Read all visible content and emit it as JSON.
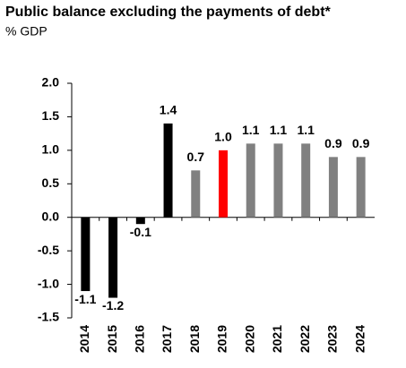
{
  "chart_data": {
    "type": "bar",
    "title": "Public balance excluding the payments of debt*",
    "subtitle": "% GDP",
    "categories": [
      "2014",
      "2015",
      "2016",
      "2017",
      "2018",
      "2019",
      "2020",
      "2021",
      "2022",
      "2023",
      "2024"
    ],
    "values": [
      -1.1,
      -1.2,
      -0.1,
      1.4,
      0.7,
      1.0,
      1.1,
      1.1,
      1.1,
      0.9,
      0.9
    ],
    "value_labels": [
      "-1.1",
      "-1.2",
      "-0.1",
      "1.4",
      "0.7",
      "1.0",
      "1.1",
      "1.1",
      "1.1",
      "0.9",
      "0.9"
    ],
    "colors": [
      "#000000",
      "#000000",
      "#000000",
      "#000000",
      "#808080",
      "#ff0000",
      "#808080",
      "#808080",
      "#808080",
      "#808080",
      "#808080"
    ],
    "ylim": [
      -1.5,
      2
    ],
    "yticks": [
      {
        "value": -1.5,
        "label": "-1.5"
      },
      {
        "value": -1,
        "label": "-1.0"
      },
      {
        "value": -0.5,
        "label": "-0.5"
      },
      {
        "value": 0,
        "label": "0.0"
      },
      {
        "value": 0.5,
        "label": "0.5"
      },
      {
        "value": 1,
        "label": "1.0"
      },
      {
        "value": 1.5,
        "label": "1.5"
      },
      {
        "value": 2,
        "label": "2.0"
      }
    ]
  }
}
